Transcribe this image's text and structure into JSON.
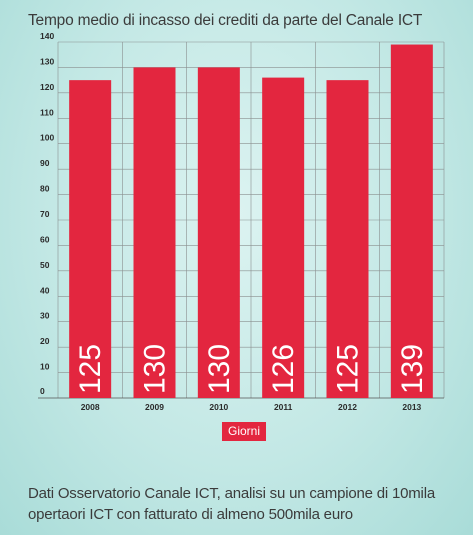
{
  "chart_data": {
    "type": "bar",
    "title": "Tempo medio di incasso dei crediti da parte del Canale ICT",
    "categories": [
      "2008",
      "2009",
      "2010",
      "2011",
      "2012",
      "2013"
    ],
    "values": [
      125,
      130,
      130,
      126,
      125,
      139
    ],
    "data_labels": [
      "125",
      "130",
      "130",
      "126",
      "125",
      "139"
    ],
    "legend": "Giorni",
    "legend_placement": "bottom-center",
    "y_ticks": [
      "0",
      "10",
      "20",
      "30",
      "40",
      "50",
      "60",
      "70",
      "80",
      "90",
      "100",
      "110",
      "120",
      "130",
      "140"
    ],
    "ylim": [
      0,
      140
    ],
    "grid": true,
    "bar_color": "#e3263f",
    "grid_color": "#8a8f8f"
  },
  "source": {
    "line1": "Dati Osservatorio Canale ICT, analisi su un campione di 10mila",
    "line2": "opertaori ICT con fatturato di almeno 500mila euro"
  }
}
